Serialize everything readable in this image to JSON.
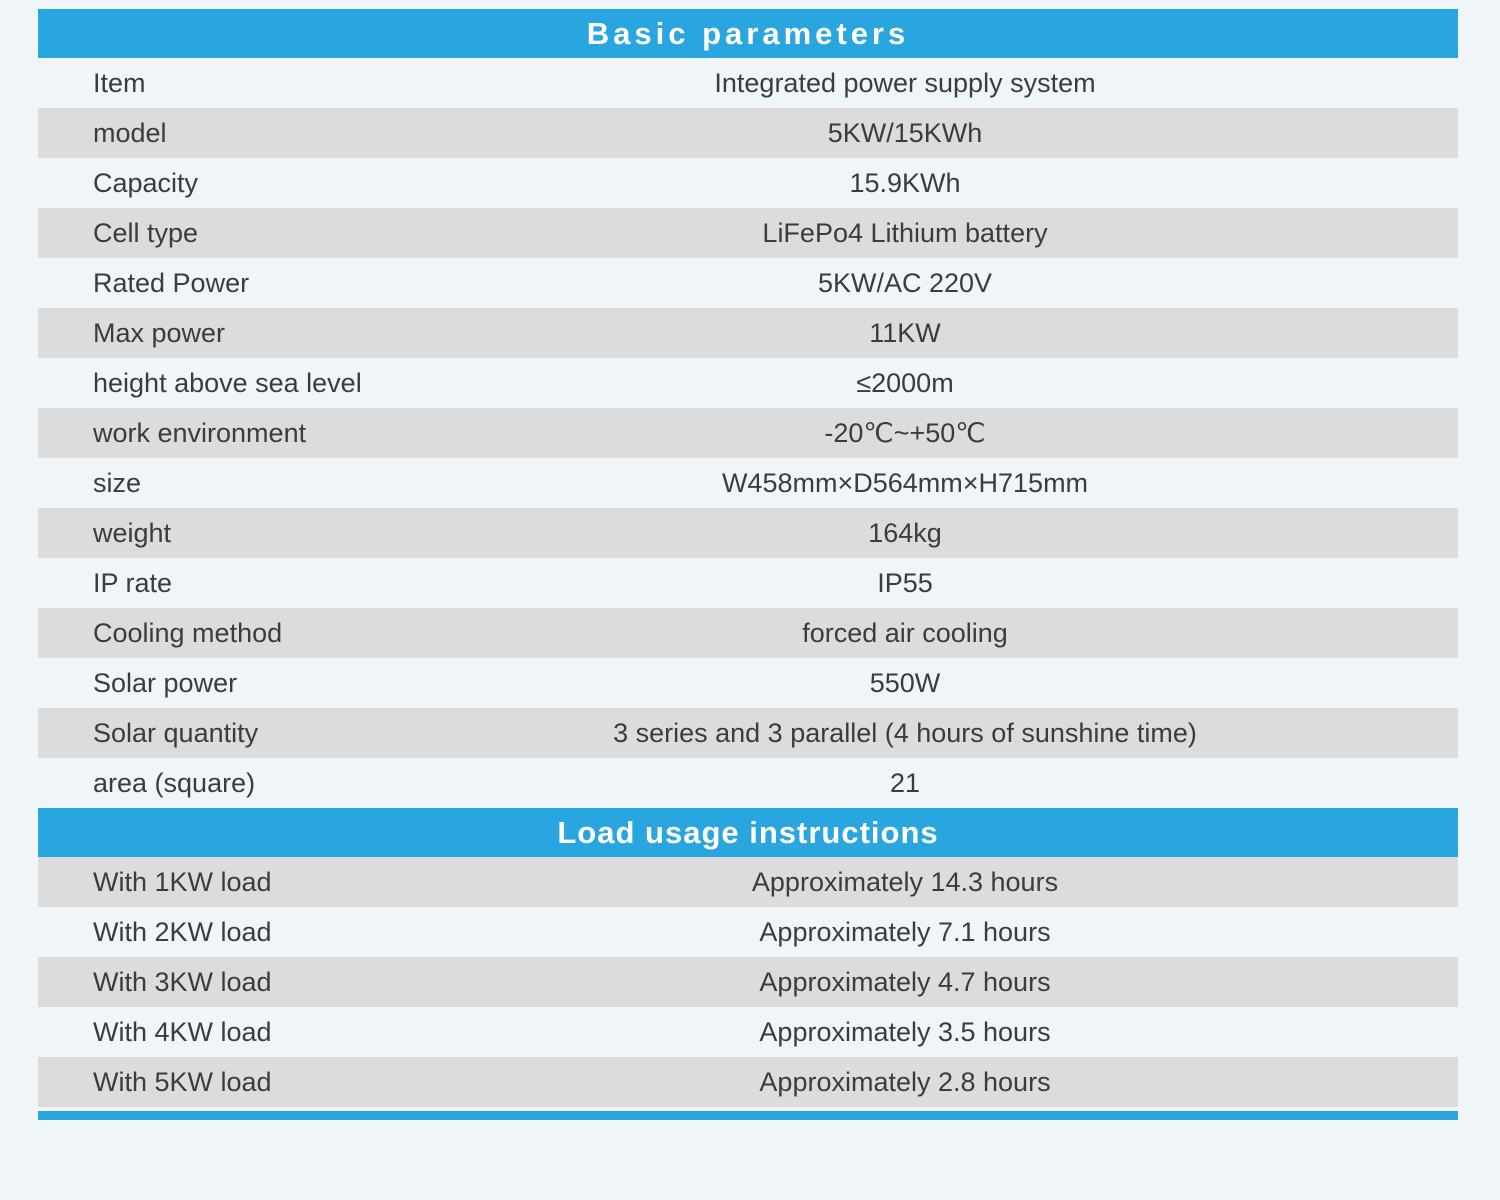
{
  "page": {
    "background_color": "#f0f5fa",
    "accent_blue": "#29a6e0",
    "row_stripe_gray": "#dcdcdc",
    "text_color": "#3c3c3c"
  },
  "basic_parameters": {
    "title": "Basic parameters",
    "rows": [
      {
        "label": "Item",
        "value": "Integrated power supply system"
      },
      {
        "label": "model",
        "value": "5KW/15KWh"
      },
      {
        "label": "Capacity",
        "value": "15.9KWh"
      },
      {
        "label": "Cell type",
        "value": "LiFePo4 Lithium battery"
      },
      {
        "label": "Rated Power",
        "value": "5KW/AC 220V"
      },
      {
        "label": "Max power",
        "value": "11KW"
      },
      {
        "label": "height above sea level",
        "value": "≤2000m"
      },
      {
        "label": "work environment",
        "value": "-20℃~+50℃"
      },
      {
        "label": "size",
        "value": "W458mm×D564mm×H715mm"
      },
      {
        "label": "weight",
        "value": "164kg"
      },
      {
        "label": "IP rate",
        "value": "IP55"
      },
      {
        "label": "Cooling method",
        "value": "forced air cooling"
      },
      {
        "label": "Solar power",
        "value": "550W"
      },
      {
        "label": "Solar quantity",
        "value": "3 series and 3 parallel (4 hours of sunshine time)"
      },
      {
        "label": "area (square)",
        "value": "21"
      }
    ]
  },
  "load_usage": {
    "title": "Load usage instructions",
    "rows": [
      {
        "label": "With 1KW load",
        "value": "Approximately 14.3 hours"
      },
      {
        "label": "With 2KW load",
        "value": "Approximately 7.1 hours"
      },
      {
        "label": "With 3KW load",
        "value": "Approximately 4.7 hours"
      },
      {
        "label": "With 4KW load",
        "value": "Approximately 3.5 hours"
      },
      {
        "label": "With 5KW load",
        "value": "Approximately 2.8 hours"
      }
    ]
  }
}
